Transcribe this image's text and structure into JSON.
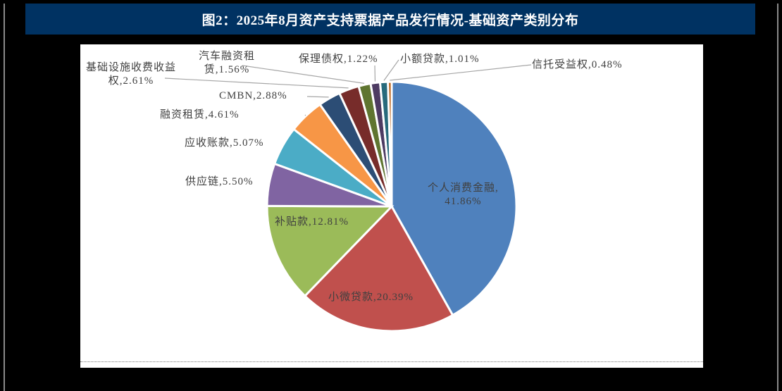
{
  "title": "图2：2025年8月资产支持票据产品发行情况-基础资产类别分布",
  "chart_data": {
    "type": "pie",
    "title": "图2：2025年8月资产支持票据产品发行情况-基础资产类别分布",
    "start_angle_deg": 0,
    "direction": "clockwise",
    "unit": "%",
    "slices": [
      {
        "name": "个人消费金融",
        "value": 41.86,
        "color": "#4F81BD",
        "label": "个人消费金融,",
        "label2": "41.86%"
      },
      {
        "name": "小微贷款",
        "value": 20.39,
        "color": "#C0504D",
        "label": "小微贷款,20.39%"
      },
      {
        "name": "补贴款",
        "value": 12.81,
        "color": "#9BBB59",
        "label": "补贴款,12.81%"
      },
      {
        "name": "供应链",
        "value": 5.5,
        "color": "#8064A2",
        "label": "供应链,5.50%"
      },
      {
        "name": "应收账款",
        "value": 5.07,
        "color": "#4BACC6",
        "label": "应收账款,5.07%"
      },
      {
        "name": "融资租赁",
        "value": 4.61,
        "color": "#F79646",
        "label": "融资租赁,4.61%"
      },
      {
        "name": "CMBN",
        "value": 2.88,
        "color": "#2C4D75",
        "label": "CMBN,2.88%"
      },
      {
        "name": "基础设施收费收益权",
        "value": 2.61,
        "color": "#772C2A",
        "label": "基础设施收费收益",
        "label2": "权,2.61%"
      },
      {
        "name": "汽车融资租赁",
        "value": 1.56,
        "color": "#5F7530",
        "label": "汽车融资租",
        "label2": "赁,1.56%"
      },
      {
        "name": "保理债权",
        "value": 1.22,
        "color": "#4D3B62",
        "label": "保理债权,1.22%"
      },
      {
        "name": "小额贷款",
        "value": 1.01,
        "color": "#276A7C",
        "label": "小额贷款,1.01%"
      },
      {
        "name": "信托受益权",
        "value": 0.48,
        "color": "#B65708",
        "label": "信托受益权,0.48%"
      }
    ]
  }
}
